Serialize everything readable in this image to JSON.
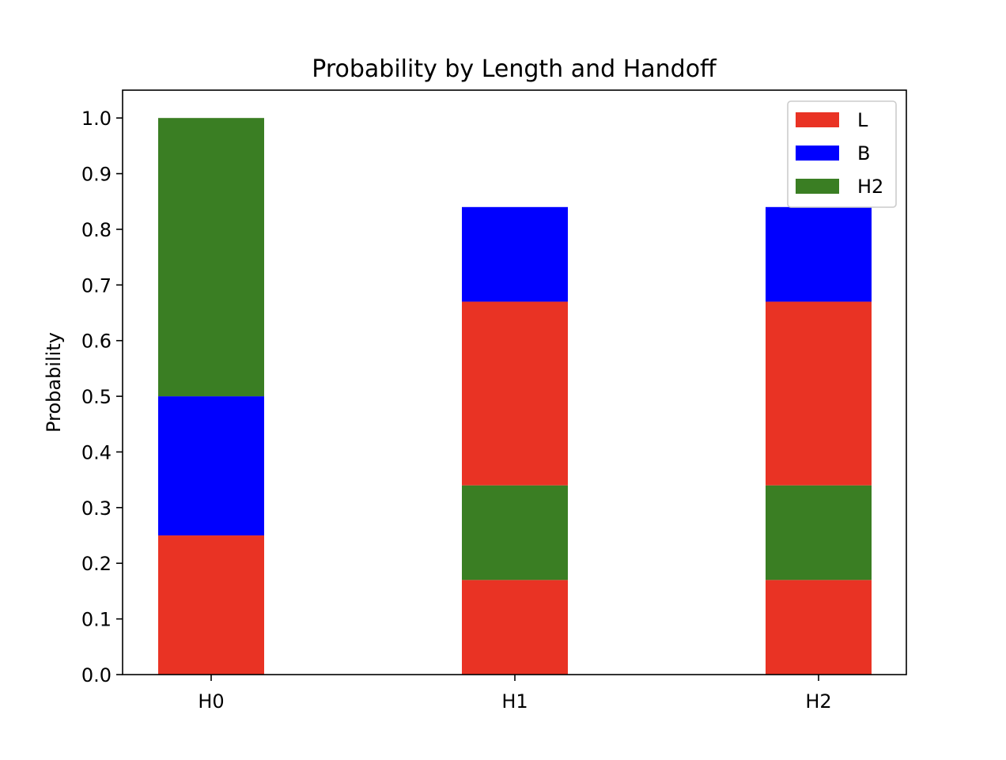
{
  "chart_data": {
    "type": "bar",
    "stacked": true,
    "title": "Probability by Length and Handoff",
    "xlabel": "",
    "ylabel": "Probability",
    "categories": [
      "H0",
      "H1",
      "H2"
    ],
    "ylim": [
      0,
      1.05
    ],
    "yticks": [
      "0.0",
      "0.1",
      "0.2",
      "0.3",
      "0.4",
      "0.5",
      "0.6",
      "0.7",
      "0.8",
      "0.9",
      "1.0"
    ],
    "grid": false,
    "legend": {
      "placement": "upper right",
      "entries": [
        {
          "label": "L",
          "color": "#e93324"
        },
        {
          "label": "B",
          "color": "#0000ff"
        },
        {
          "label": "H2",
          "color": "#3a7e23"
        }
      ]
    },
    "segments": [
      {
        "category": "H0",
        "legend": "L",
        "bottom": 0.0,
        "top": 0.25,
        "color": "#e93324"
      },
      {
        "category": "H0",
        "legend": "B",
        "bottom": 0.25,
        "top": 0.5,
        "color": "#0000ff"
      },
      {
        "category": "H0",
        "legend": "H2",
        "bottom": 0.5,
        "top": 1.0,
        "color": "#3a7e23"
      },
      {
        "category": "H1",
        "legend": "L",
        "bottom": 0.0,
        "top": 0.17,
        "color": "#e93324"
      },
      {
        "category": "H1",
        "legend": "H2",
        "bottom": 0.17,
        "top": 0.34,
        "color": "#3a7e23"
      },
      {
        "category": "H1",
        "legend": "L",
        "bottom": 0.34,
        "top": 0.67,
        "color": "#e93324"
      },
      {
        "category": "H1",
        "legend": "B",
        "bottom": 0.67,
        "top": 0.84,
        "color": "#0000ff"
      },
      {
        "category": "H2",
        "legend": "L",
        "bottom": 0.0,
        "top": 0.17,
        "color": "#e93324"
      },
      {
        "category": "H2",
        "legend": "H2",
        "bottom": 0.17,
        "top": 0.34,
        "color": "#3a7e23"
      },
      {
        "category": "H2",
        "legend": "L",
        "bottom": 0.34,
        "top": 0.67,
        "color": "#e93324"
      },
      {
        "category": "H2",
        "legend": "B",
        "bottom": 0.67,
        "top": 0.84,
        "color": "#0000ff"
      }
    ]
  }
}
